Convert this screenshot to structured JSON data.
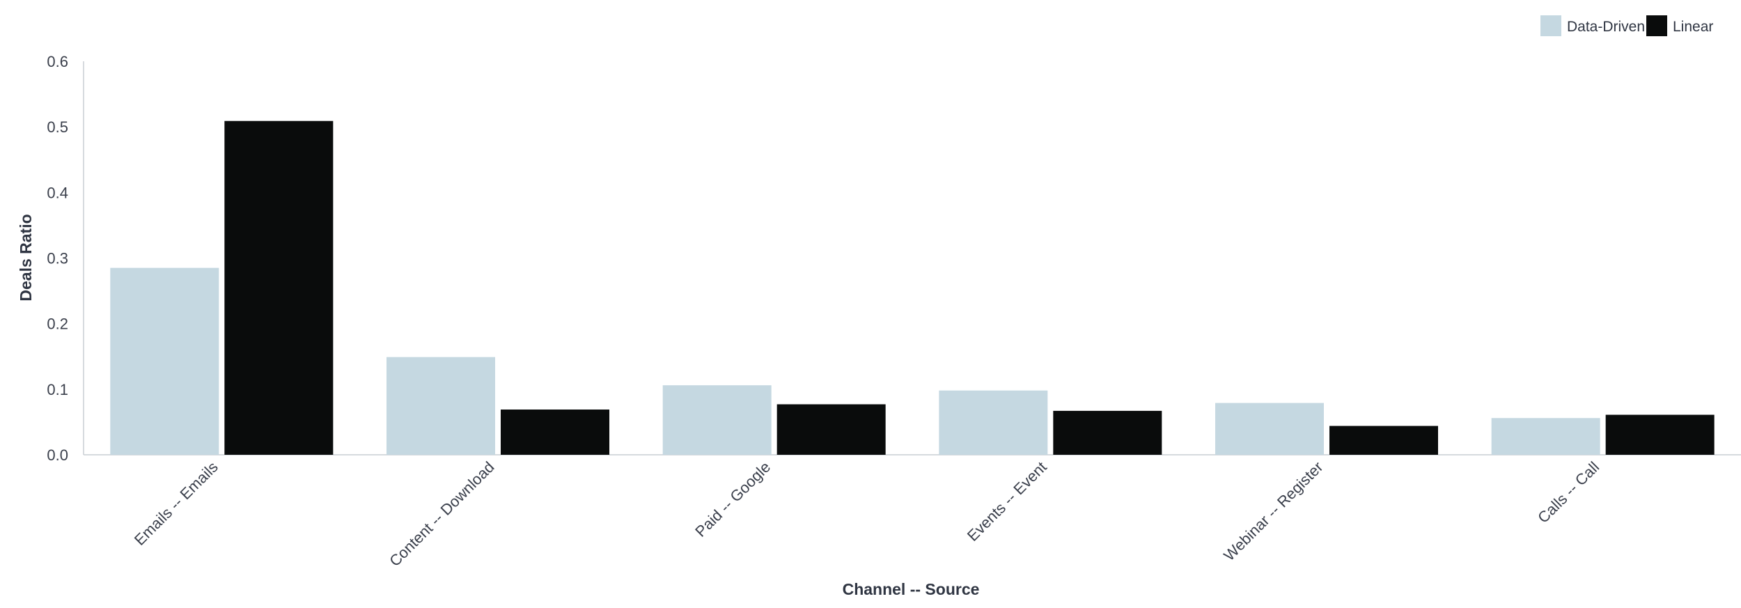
{
  "chart_data": {
    "type": "bar",
    "categories": [
      "Emails -- Emails",
      "Content -- Download",
      "Paid -- Google",
      "Events -- Event",
      "Webinar -- Register",
      "Calls -- Call"
    ],
    "series": [
      {
        "name": "Data-Driven",
        "color": "#c5d8e1",
        "values": [
          0.285,
          0.149,
          0.106,
          0.098,
          0.079,
          0.056
        ]
      },
      {
        "name": "Linear",
        "color": "#0a0c0c",
        "values": [
          0.509,
          0.069,
          0.077,
          0.067,
          0.044,
          0.061
        ]
      }
    ],
    "title": "",
    "xlabel": "Channel -- Source",
    "ylabel": "Deals Ratio",
    "ylim": [
      0,
      0.6
    ],
    "yticks": [
      "0.0",
      "0.1",
      "0.2",
      "0.3",
      "0.4",
      "0.5",
      "0.6"
    ],
    "grid": false,
    "legend_position": "top-right"
  }
}
